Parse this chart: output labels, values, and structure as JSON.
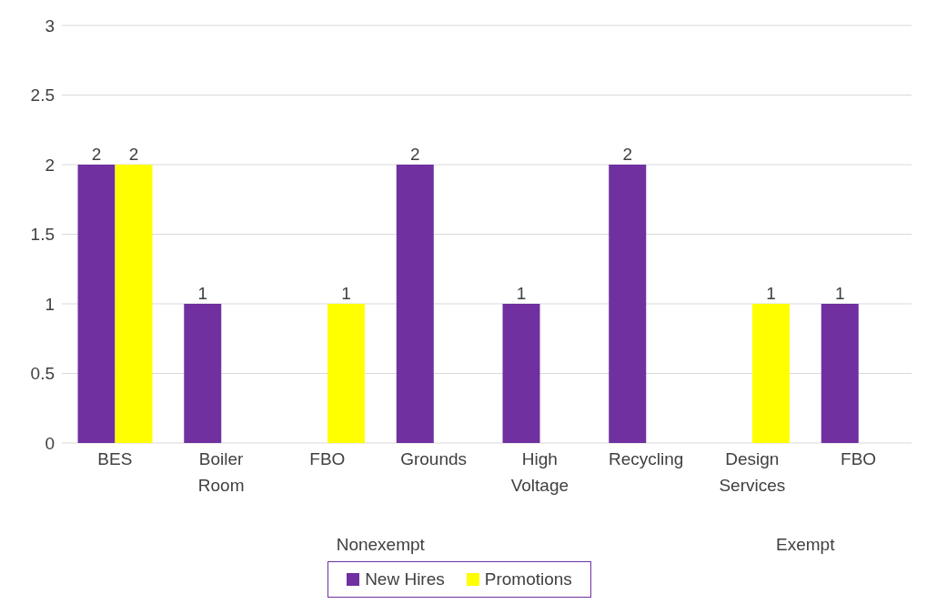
{
  "chart_data": {
    "type": "bar",
    "categories": [
      "BES",
      "Boiler Room",
      "FBO",
      "Grounds",
      "High Voltage",
      "Recycling",
      "Design Services",
      "FBO"
    ],
    "series": [
      {
        "name": "New Hires",
        "color": "#7030a0",
        "values": [
          2,
          1,
          null,
          2,
          1,
          2,
          null,
          1
        ]
      },
      {
        "name": "Promotions",
        "color": "#ffff00",
        "values": [
          2,
          null,
          1,
          null,
          null,
          null,
          1,
          null
        ]
      }
    ],
    "ylim": [
      0,
      3
    ],
    "yticks": [
      0,
      0.5,
      1,
      1.5,
      2,
      2.5,
      3
    ],
    "grid": "y",
    "data_labels": true,
    "legend": "bottom",
    "annotations": [
      "Nonexempt",
      "Exempt"
    ]
  }
}
